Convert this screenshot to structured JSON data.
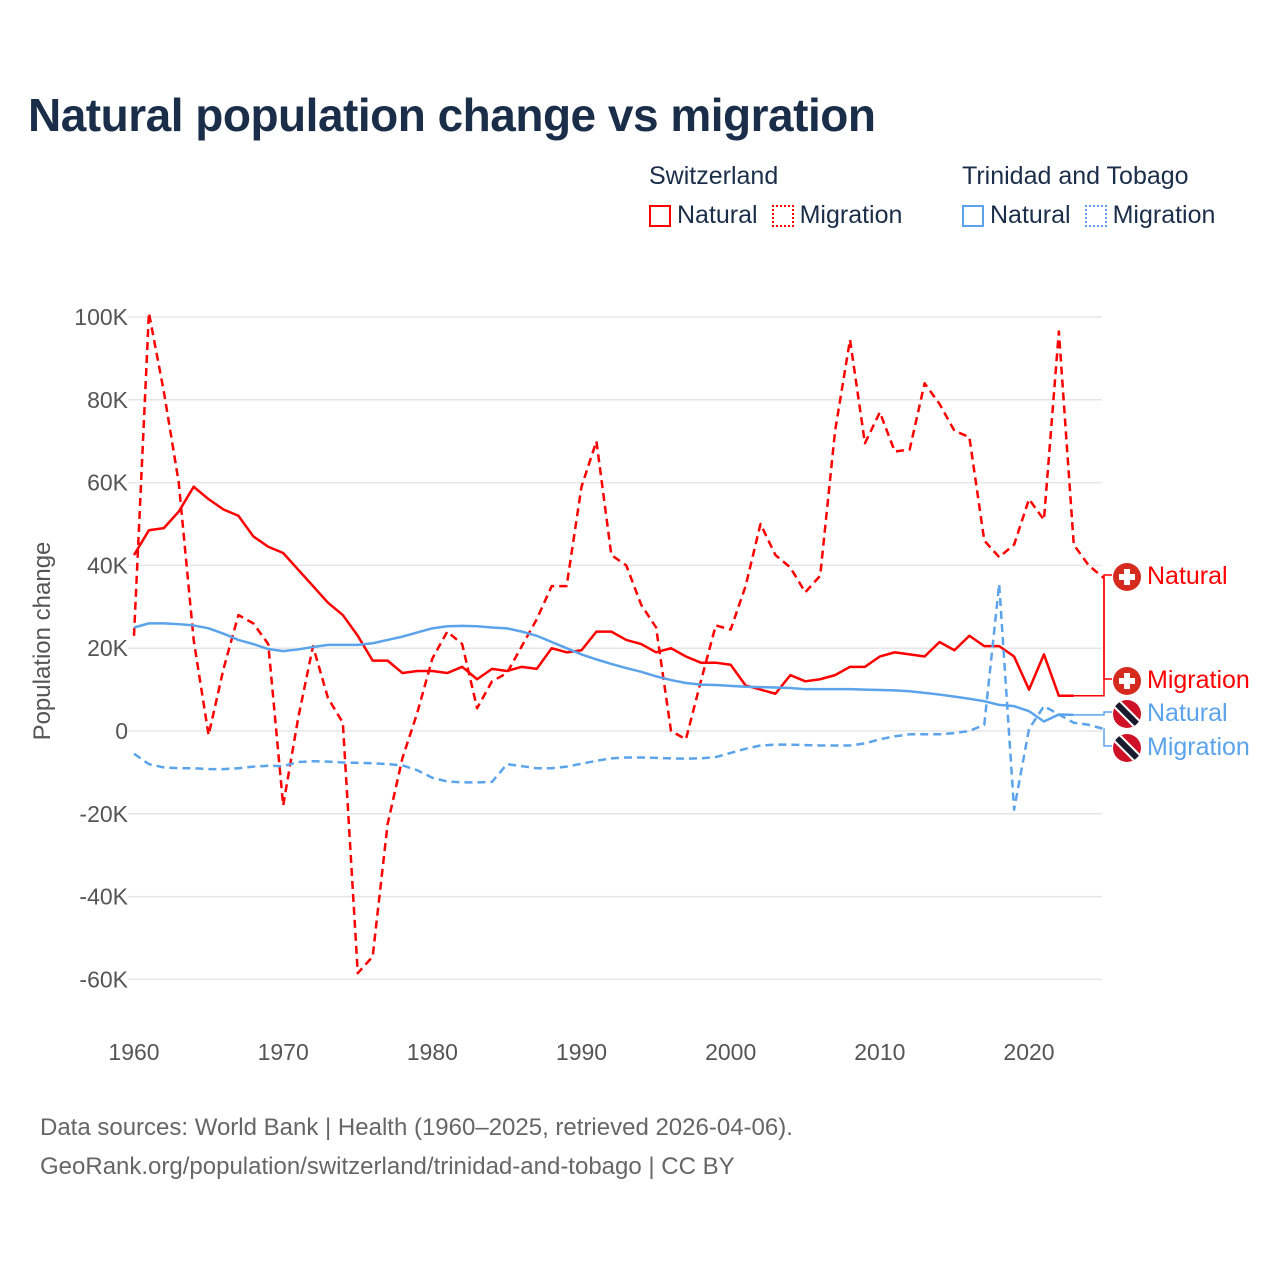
{
  "title": "Natural population change vs migration",
  "legend": {
    "groups": [
      {
        "name": "Switzerland",
        "color": "#ff0000",
        "items": [
          "Natural",
          "Migration"
        ]
      },
      {
        "name": "Trinidad and Tobago",
        "color": "#5ba3ea",
        "items": [
          "Natural",
          "Migration"
        ]
      }
    ]
  },
  "source": {
    "line1": "Data sources: World Bank | Health (1960–2025, retrieved 2026-04-06).",
    "line2": "GeoRank.org/population/switzerland/trinidad-and-tobago | CC BY"
  },
  "chart_data": {
    "type": "line",
    "title": "Natural population change vs migration",
    "xlabel": "",
    "ylabel": "Population change",
    "xlim": [
      1960,
      2025
    ],
    "ylim": [
      -70000,
      105000
    ],
    "x_ticks": [
      1960,
      1970,
      1980,
      1990,
      2000,
      2010,
      2020
    ],
    "x_tick_labels": [
      "1960",
      "1970",
      "1980",
      "1990",
      "2000",
      "2010",
      "2020"
    ],
    "y_ticks": [
      100000,
      80000,
      60000,
      40000,
      20000,
      0,
      -20000,
      -40000,
      -60000
    ],
    "y_tick_labels": [
      "100K",
      "80K",
      "60K",
      "40K",
      "20K",
      "0",
      "-20K",
      "-40K",
      "-60K"
    ],
    "grid": true,
    "legend_position": "top-right",
    "series": [
      {
        "name": "Switzerland Natural",
        "end_label": "Natural",
        "color": "#ff0000",
        "dash": false,
        "start": 1960,
        "values_k": [
          42.5,
          48.5,
          49,
          53,
          59,
          56,
          53.5,
          52,
          47,
          44.5,
          43,
          39,
          35,
          31,
          28,
          23,
          17,
          17,
          14,
          14.5,
          14.5,
          14,
          15.5,
          12.5,
          15,
          14.5,
          15.5,
          15,
          20,
          19,
          19.5,
          24,
          24,
          22,
          21,
          19,
          20,
          18,
          16.5,
          16.5,
          16,
          11,
          10,
          9,
          13.5,
          12,
          12.5,
          13.5,
          15.5,
          15.5,
          18,
          19,
          18.5,
          18,
          21.5,
          19.5,
          23,
          20.5,
          20.5,
          18,
          10,
          18.5,
          8.5,
          8.5
        ]
      },
      {
        "name": "Switzerland Migration",
        "end_label": "Migration",
        "color": "#ff0000",
        "dash": true,
        "start": 1960,
        "values_k": [
          23,
          101,
          82,
          60,
          22,
          -1,
          15,
          28,
          26,
          21,
          -18,
          3,
          20.5,
          8,
          2,
          -58.5,
          -54.5,
          -22.5,
          -6.5,
          4.5,
          17.5,
          24,
          21,
          5.5,
          12,
          14,
          20.5,
          27,
          35,
          35,
          59,
          70,
          42.5,
          40,
          30.5,
          25,
          0,
          -2,
          12,
          25.5,
          24.5,
          35,
          50,
          42.5,
          39.5,
          33.5,
          37.5,
          72.5,
          94.5,
          69.5,
          77,
          67.5,
          68,
          84,
          79,
          72.5,
          71,
          46,
          42,
          45,
          56,
          51,
          96.5,
          45,
          40,
          37
        ]
      },
      {
        "name": "Trinidad and Tobago Natural",
        "end_label": "Natural",
        "color": "#5ba3ea",
        "dash": false,
        "start": 1960,
        "values_k": [
          25,
          26,
          26,
          25.8,
          25.5,
          24.8,
          23.5,
          22,
          21,
          19.8,
          19.3,
          19.7,
          20.3,
          20.8,
          20.8,
          20.8,
          21.2,
          22,
          22.8,
          23.8,
          24.8,
          25.3,
          25.4,
          25.3,
          25,
          24.8,
          24,
          23,
          21.5,
          20,
          18.5,
          17.3,
          16.2,
          15.2,
          14.3,
          13.2,
          12.3,
          11.6,
          11.2,
          11.1,
          10.9,
          10.7,
          10.6,
          10.5,
          10.4,
          10.1,
          10.1,
          10.1,
          10.1,
          10,
          9.9,
          9.8,
          9.6,
          9.2,
          8.8,
          8.3,
          7.8,
          7.2,
          6.3,
          6,
          4.8,
          2.3,
          4,
          3.9
        ]
      },
      {
        "name": "Trinidad and Tobago Migration",
        "end_label": "Migration",
        "color": "#5ba3ea",
        "dash": true,
        "start": 1960,
        "values_k": [
          -5.5,
          -8,
          -8.8,
          -9,
          -9,
          -9.2,
          -9.2,
          -9,
          -8.6,
          -8.4,
          -8.5,
          -7.5,
          -7.3,
          -7.4,
          -7.6,
          -7.7,
          -7.8,
          -8,
          -8.3,
          -9.5,
          -11.3,
          -12.2,
          -12.4,
          -12.4,
          -12.3,
          -8,
          -8.5,
          -9,
          -9,
          -8.6,
          -7.9,
          -7.2,
          -6.6,
          -6.4,
          -6.4,
          -6.5,
          -6.6,
          -6.7,
          -6.6,
          -6.3,
          -5.3,
          -4.3,
          -3.5,
          -3.3,
          -3.3,
          -3.4,
          -3.5,
          -3.5,
          -3.5,
          -3,
          -2,
          -1.3,
          -0.8,
          -0.8,
          -0.8,
          -0.5,
          0,
          1.5,
          35.5,
          -19,
          0.5,
          6,
          4,
          2,
          1.5,
          0.5
        ]
      }
    ]
  }
}
